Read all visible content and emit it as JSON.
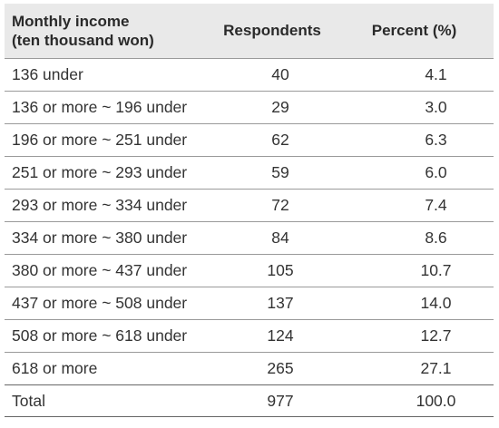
{
  "table": {
    "headers": {
      "income_line1": "Monthly income",
      "income_line2": "(ten thousand won)",
      "respondents": "Respondents",
      "percent": "Percent (%)"
    },
    "rows": [
      {
        "income": "136 under",
        "respondents": "40",
        "percent": "4.1"
      },
      {
        "income": "136 or more ~ 196 under",
        "respondents": "29",
        "percent": "3.0"
      },
      {
        "income": "196 or more ~ 251 under",
        "respondents": "62",
        "percent": "6.3"
      },
      {
        "income": "251 or more ~ 293 under",
        "respondents": "59",
        "percent": "6.0"
      },
      {
        "income": "293 or more ~ 334 under",
        "respondents": "72",
        "percent": "7.4"
      },
      {
        "income": "334 or more ~ 380 under",
        "respondents": "84",
        "percent": "8.6"
      },
      {
        "income": "380 or more ~ 437 under",
        "respondents": "105",
        "percent": "10.7"
      },
      {
        "income": "437 or more ~ 508 under",
        "respondents": "137",
        "percent": "14.0"
      },
      {
        "income": "508 or more ~ 618 under",
        "respondents": "124",
        "percent": "12.7"
      },
      {
        "income": "618 or more",
        "respondents": "265",
        "percent": "27.1"
      }
    ],
    "total": {
      "income": "Total",
      "respondents": "977",
      "percent": "100.0"
    }
  }
}
